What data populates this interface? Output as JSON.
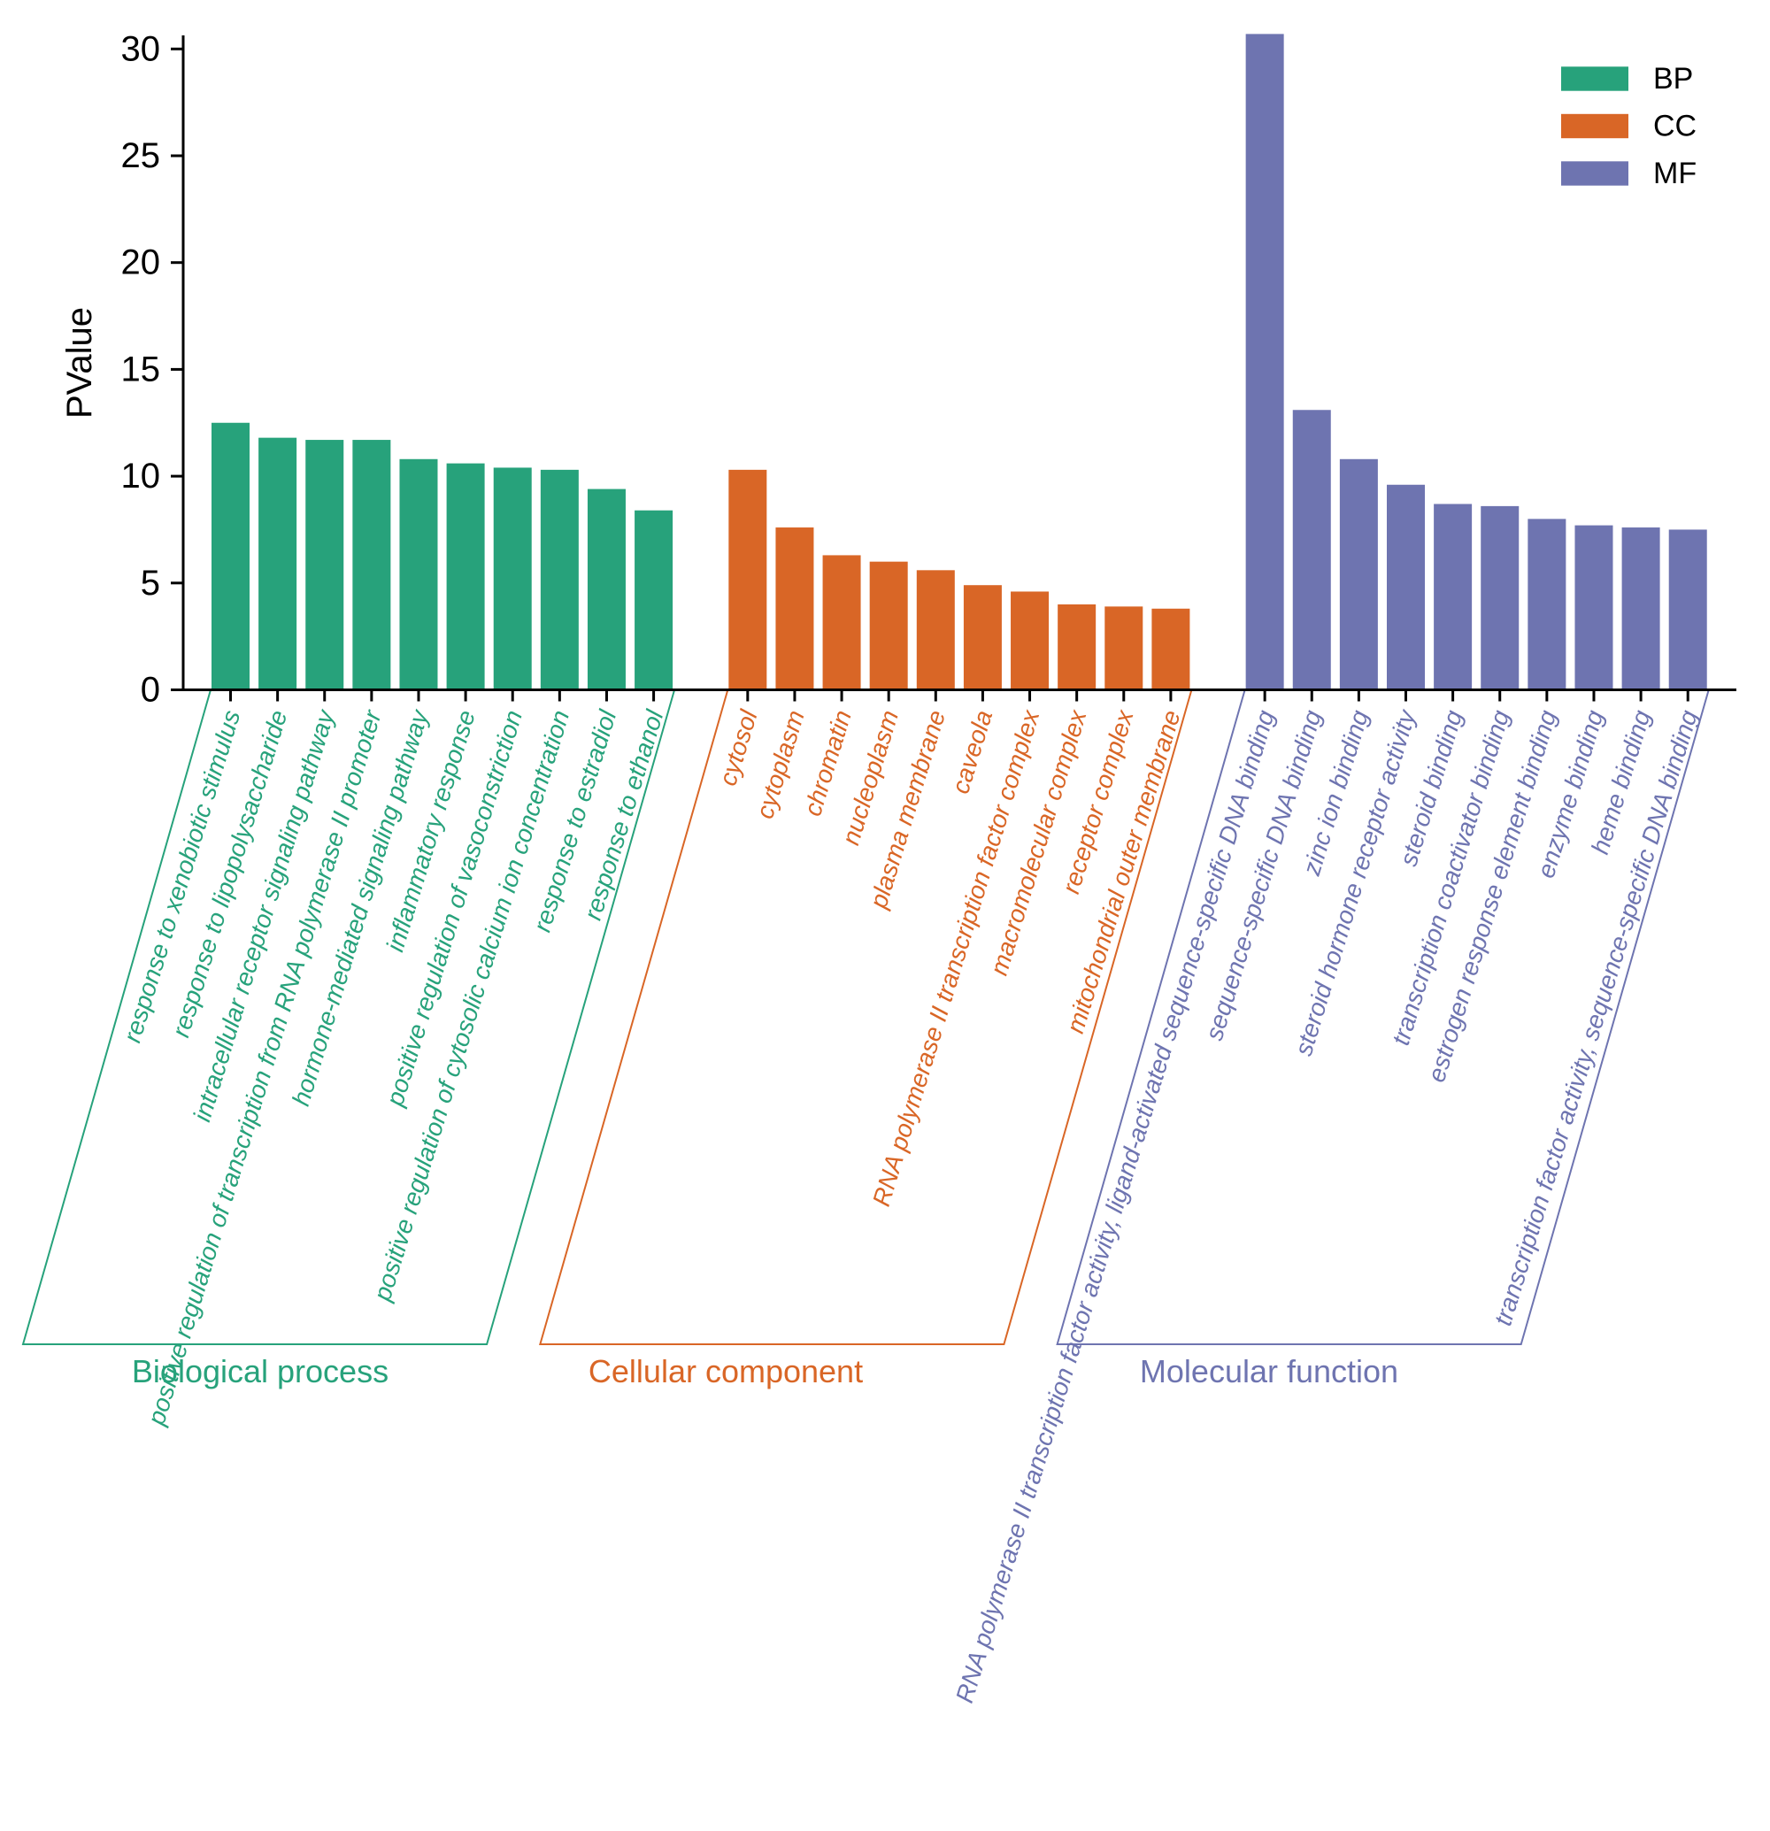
{
  "chart_data": {
    "type": "bar",
    "title": "",
    "xlabel": "",
    "ylabel": "PValue",
    "ylim": [
      0,
      30
    ],
    "yticks": [
      0,
      5,
      10,
      15,
      20,
      25,
      30
    ],
    "grid": false,
    "legend": {
      "placement": "top-right",
      "entries": [
        {
          "key": "BP",
          "label": "BP",
          "color": "#27A27B"
        },
        {
          "key": "CC",
          "label": "CC",
          "color": "#D96626"
        },
        {
          "key": "MF",
          "label": "MF",
          "color": "#6E74B0"
        }
      ]
    },
    "groups": [
      {
        "key": "BP",
        "name": "Biological process",
        "color": "#27A27B",
        "categories": [
          "response to xenobiotic stimulus",
          "response to lipopolysaccharide",
          "intracellular receptor signaling pathway",
          "positive regulation of transcription from RNA polymerase II promoter",
          "hormone-mediated signaling pathway",
          "inflammatory response",
          "positive regulation of vasoconstriction",
          "positive regulation of cytosolic calcium ion concentration",
          "response to estradiol",
          "response to ethanol"
        ],
        "values": [
          12.5,
          11.8,
          11.7,
          11.7,
          10.8,
          10.6,
          10.4,
          10.3,
          9.4,
          8.4
        ]
      },
      {
        "key": "CC",
        "name": "Cellular component",
        "color": "#D96626",
        "categories": [
          "cytosol",
          "cytoplasm",
          "chromatin",
          "nucleoplasm",
          "plasma membrane",
          "caveola",
          "RNA polymerase II transcription factor complex",
          "macromolecular complex",
          "receptor complex",
          "mitochondrial outer membrane"
        ],
        "values": [
          10.3,
          7.6,
          6.3,
          6.0,
          5.6,
          4.9,
          4.6,
          4.0,
          3.9,
          3.8
        ]
      },
      {
        "key": "MF",
        "name": "Molecular function",
        "color": "#6E74B0",
        "categories": [
          "RNA polymerase II transcription factor activity, ligand-activated sequence-specific DNA binding",
          "sequence-specific DNA binding",
          "zinc ion binding",
          "steroid hormone receptor activity",
          "steroid binding",
          "transcription coactivator binding",
          "estrogen response element binding",
          "enzyme binding",
          "heme binding",
          "transcription factor activity, sequence-specific DNA binding"
        ],
        "values": [
          30.7,
          13.1,
          10.8,
          9.6,
          8.7,
          8.6,
          8.0,
          7.7,
          7.6,
          7.5
        ]
      }
    ]
  }
}
